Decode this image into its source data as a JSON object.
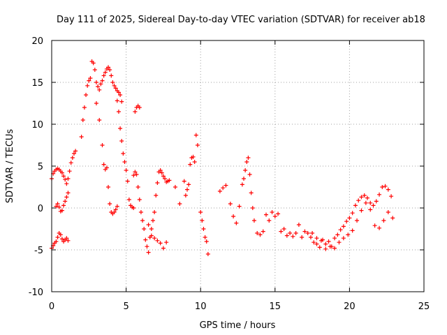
{
  "chart_data": {
    "type": "scatter",
    "title": "Day 111 of 2025, Sidereal Day-to-day VTEC variation (SDTVAR) for receiver ab18",
    "xlabel": "GPS time / hours",
    "ylabel": "SDTVAR / TECUs",
    "xlim": [
      0,
      25
    ],
    "ylim": [
      -10,
      20
    ],
    "xticks": [
      "0",
      "5",
      "10",
      "15",
      "20",
      "25"
    ],
    "yticks": [
      "-10",
      "-5",
      "0",
      "5",
      "10",
      "15",
      "20"
    ],
    "grid": true,
    "marker": "+",
    "color": "#ff0000",
    "series": [
      {
        "name": "ab18",
        "x": [
          0.0,
          0.1,
          0.2,
          0.3,
          0.4,
          0.5,
          0.6,
          0.7,
          0.8,
          0.9,
          1.0,
          1.1,
          1.2,
          1.3,
          1.4,
          1.5,
          1.6,
          0.0,
          0.1,
          0.2,
          0.3,
          0.4,
          0.5,
          0.6,
          0.7,
          0.8,
          0.9,
          1.0,
          1.1,
          0.3,
          0.4,
          0.5,
          0.6,
          0.7,
          0.8,
          0.9,
          1.0,
          1.1,
          2.0,
          2.1,
          2.2,
          2.3,
          2.4,
          2.5,
          2.6,
          2.7,
          2.8,
          2.9,
          3.0,
          3.1,
          3.2,
          3.3,
          3.4,
          3.5,
          3.6,
          3.7,
          3.8,
          3.9,
          4.0,
          4.1,
          4.2,
          4.3,
          4.4,
          4.5,
          4.6,
          4.7,
          3.0,
          3.2,
          3.4,
          3.5,
          3.6,
          3.7,
          3.8,
          3.9,
          4.0,
          4.1,
          4.2,
          4.3,
          4.4,
          4.4,
          4.5,
          4.6,
          4.7,
          4.8,
          4.9,
          5.0,
          5.1,
          5.2,
          5.3,
          5.4,
          5.5,
          5.6,
          5.7,
          5.8,
          5.9,
          5.5,
          5.6,
          5.7,
          5.8,
          5.9,
          6.0,
          6.1,
          6.2,
          6.3,
          6.4,
          6.5,
          6.6,
          6.7,
          6.8,
          6.9,
          7.0,
          7.1,
          7.2,
          7.3,
          7.4,
          7.5,
          7.6,
          7.7,
          7.8,
          7.9,
          6.5,
          6.7,
          6.9,
          7.1,
          7.3,
          7.5,
          7.7,
          8.3,
          8.6,
          8.9,
          9.0,
          9.1,
          9.2,
          9.3,
          9.4,
          9.5,
          9.6,
          9.7,
          9.8,
          10.0,
          10.1,
          10.2,
          10.3,
          10.4,
          10.5,
          11.3,
          11.5,
          11.7,
          12.0,
          12.2,
          12.4,
          12.6,
          12.8,
          12.9,
          13.0,
          13.1,
          13.2,
          13.3,
          13.4,
          13.5,
          13.6,
          13.8,
          14.0,
          14.2,
          14.4,
          14.6,
          14.8,
          15.0,
          15.2,
          15.4,
          15.6,
          15.8,
          16.0,
          16.2,
          16.4,
          16.6,
          16.8,
          17.0,
          17.2,
          17.4,
          17.6,
          17.8,
          18.0,
          18.2,
          18.4,
          18.6,
          18.8,
          19.0,
          19.2,
          19.4,
          19.6,
          19.8,
          20.0,
          20.2,
          20.4,
          20.6,
          20.8,
          21.0,
          21.2,
          21.4,
          21.6,
          21.8,
          22.0,
          22.2,
          22.4,
          22.6,
          22.8,
          17.5,
          17.8,
          18.1,
          18.4,
          18.7,
          19.0,
          19.3,
          19.6,
          19.9,
          20.2,
          20.5,
          20.8,
          21.1,
          21.4,
          21.7,
          22.0,
          22.3,
          22.6,
          22.9
        ],
        "y": [
          3.5,
          4.1,
          4.4,
          4.6,
          4.7,
          4.6,
          4.4,
          4.2,
          3.8,
          3.4,
          2.9,
          3.5,
          4.4,
          5.4,
          6.0,
          6.5,
          6.8,
          -4.8,
          -4.5,
          -4.2,
          -4.0,
          -3.5,
          -3.0,
          -3.2,
          -3.7,
          -4.0,
          -3.8,
          -3.6,
          -3.9,
          0.2,
          0.5,
          0.1,
          -0.4,
          -0.3,
          0.3,
          0.8,
          1.3,
          1.8,
          8.5,
          10.5,
          12.0,
          13.5,
          14.6,
          15.2,
          15.5,
          17.5,
          17.3,
          16.5,
          15.0,
          14.5,
          14.1,
          14.8,
          15.2,
          15.8,
          16.2,
          16.6,
          16.8,
          16.5,
          15.8,
          15.0,
          14.6,
          14.3,
          14.0,
          13.8,
          13.5,
          12.7,
          12.5,
          10.5,
          7.5,
          5.2,
          4.6,
          4.8,
          2.5,
          0.5,
          -0.5,
          -0.7,
          -0.5,
          -0.2,
          0.2,
          12.8,
          11.5,
          9.5,
          8.0,
          6.5,
          5.5,
          4.5,
          3.2,
          1.0,
          0.3,
          0.1,
          0.0,
          11.5,
          12.0,
          12.2,
          12.0,
          3.9,
          4.3,
          4.0,
          2.5,
          1.0,
          -0.5,
          -1.5,
          -2.5,
          -3.8,
          -4.6,
          -5.3,
          -3.5,
          -2.5,
          -1.5,
          -0.5,
          1.5,
          3.0,
          4.3,
          4.5,
          4.2,
          3.8,
          3.5,
          3.1,
          3.2,
          3.3,
          -2.0,
          -3.3,
          -3.6,
          -3.9,
          -4.2,
          -4.8,
          -4.1,
          2.5,
          0.5,
          3.2,
          1.5,
          2.2,
          2.8,
          5.2,
          6.0,
          6.1,
          5.5,
          8.7,
          7.5,
          -0.5,
          -1.5,
          -2.5,
          -3.5,
          -4.0,
          -5.5,
          2.0,
          2.4,
          2.7,
          0.5,
          -1.0,
          -1.8,
          0.2,
          2.8,
          3.5,
          4.5,
          5.5,
          6.0,
          4.0,
          1.8,
          0.0,
          -1.5,
          -3.0,
          -3.2,
          -2.8,
          -0.8,
          -1.5,
          -0.5,
          -1.0,
          -0.7,
          -2.8,
          -2.5,
          -3.3,
          -3.0,
          -3.4,
          -3.0,
          -2.0,
          -3.5,
          -2.8,
          -3.0,
          -3.5,
          -4.1,
          -4.3,
          -4.7,
          -3.8,
          -4.9,
          -4.0,
          -4.6,
          -3.6,
          -3.2,
          -2.6,
          -2.2,
          -1.6,
          -1.2,
          -0.6,
          0.3,
          0.9,
          1.3,
          1.5,
          1.2,
          0.6,
          0.3,
          0.8,
          1.6,
          2.5,
          2.6,
          2.2,
          1.4,
          -3.0,
          -3.6,
          -3.9,
          -4.3,
          -4.6,
          -4.8,
          -4.1,
          -3.6,
          -3.2,
          -2.7,
          -1.5,
          -0.3,
          0.6,
          -0.2,
          -2.1,
          -2.4,
          -1.5,
          -0.5,
          -1.2
        ]
      }
    ]
  }
}
